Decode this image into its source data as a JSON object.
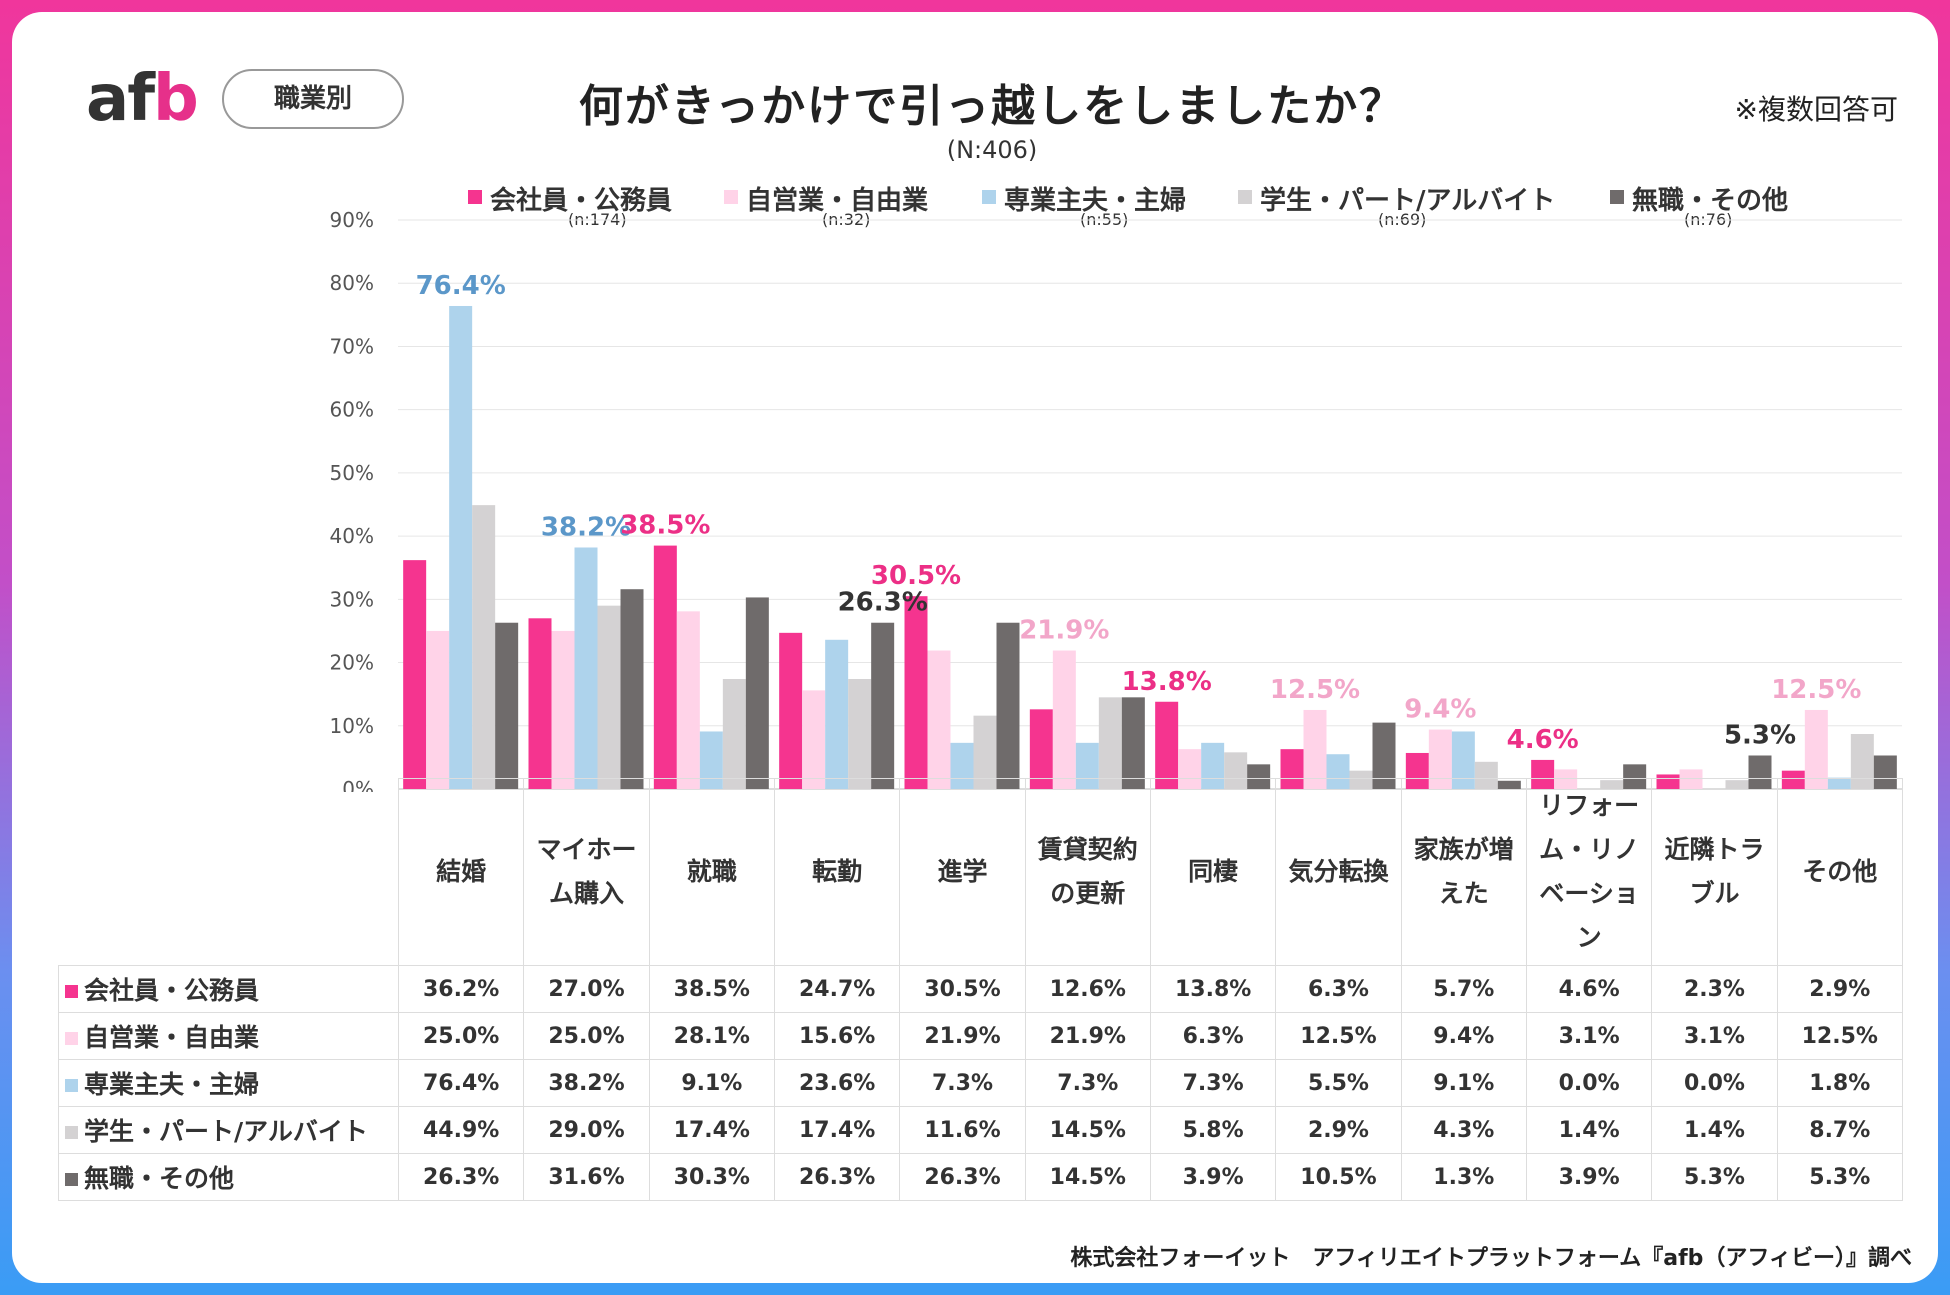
{
  "header": {
    "logo": {
      "a": "a",
      "f": "f",
      "b": "b"
    },
    "badge": "職業別",
    "title": "何がきっかけで引っ越しをしましたか？",
    "n_total": "(N:406)",
    "note": "※複数回答可"
  },
  "legend": [
    {
      "label": "会社員・公務員",
      "n": "(n:174)",
      "color": "#f5348f"
    },
    {
      "label": "自営業・自由業",
      "n": "(n:32)",
      "color": "#ffd3e8"
    },
    {
      "label": "専業主夫・主婦",
      "n": "(n:55)",
      "color": "#aed3ec"
    },
    {
      "label": "学生・パート/アルバイト",
      "n": "(n:69)",
      "color": "#d4d2d3"
    },
    {
      "label": "無職・その他",
      "n": "(n:76)",
      "color": "#6f6b6b"
    }
  ],
  "chart_data": {
    "type": "bar",
    "title": "何がきっかけで引っ越しをしましたか？",
    "ylim": [
      0,
      90
    ],
    "yticks": [
      "0%",
      "10%",
      "20%",
      "30%",
      "40%",
      "50%",
      "60%",
      "70%",
      "80%",
      "90%"
    ],
    "categories": [
      "結婚",
      "マイホーム購入",
      "就職",
      "転勤",
      "進学",
      "賃貸契約の更新",
      "同棲",
      "気分転換",
      "家族が増えた",
      "リフォーム・リノベーション",
      "近隣トラブル",
      "その他"
    ],
    "category_lines": [
      [
        "結婚"
      ],
      [
        "マイホー",
        "ム購入"
      ],
      [
        "就職"
      ],
      [
        "転勤"
      ],
      [
        "進学"
      ],
      [
        "賃貸契約",
        "の更新"
      ],
      [
        "同棲"
      ],
      [
        "気分転換"
      ],
      [
        "家族が増",
        "えた"
      ],
      [
        "リフォー",
        "ム・リノ",
        "ベーショ",
        "ン"
      ],
      [
        "近隣トラ",
        "ブル"
      ],
      [
        "その他"
      ]
    ],
    "series": [
      {
        "name": "会社員・公務員",
        "values": [
          36.2,
          27.0,
          38.5,
          24.7,
          30.5,
          12.6,
          13.8,
          6.3,
          5.7,
          4.6,
          2.3,
          2.9
        ]
      },
      {
        "name": "自営業・自由業",
        "values": [
          25.0,
          25.0,
          28.1,
          15.6,
          21.9,
          21.9,
          6.3,
          12.5,
          9.4,
          3.1,
          3.1,
          12.5
        ]
      },
      {
        "name": "専業主夫・主婦",
        "values": [
          76.4,
          38.2,
          9.1,
          23.6,
          7.3,
          7.3,
          7.3,
          5.5,
          9.1,
          0.0,
          0.0,
          1.8
        ]
      },
      {
        "name": "学生・パート/アルバイト",
        "values": [
          44.9,
          29.0,
          17.4,
          17.4,
          11.6,
          14.5,
          5.8,
          2.9,
          4.3,
          1.4,
          1.4,
          8.7
        ]
      },
      {
        "name": "無職・その他",
        "values": [
          26.3,
          31.6,
          30.3,
          26.3,
          26.3,
          14.5,
          3.9,
          10.5,
          1.3,
          3.9,
          5.3,
          5.3
        ]
      }
    ],
    "table_values": [
      [
        "36.2%",
        "27.0%",
        "38.5%",
        "24.7%",
        "30.5%",
        "12.6%",
        "13.8%",
        "6.3%",
        "5.7%",
        "4.6%",
        "2.3%",
        "2.9%"
      ],
      [
        "25.0%",
        "25.0%",
        "28.1%",
        "15.6%",
        "21.9%",
        "21.9%",
        "6.3%",
        "12.5%",
        "9.4%",
        "3.1%",
        "3.1%",
        "12.5%"
      ],
      [
        "76.4%",
        "38.2%",
        "9.1%",
        "23.6%",
        "7.3%",
        "7.3%",
        "7.3%",
        "5.5%",
        "9.1%",
        "0.0%",
        "0.0%",
        "1.8%"
      ],
      [
        "44.9%",
        "29.0%",
        "17.4%",
        "17.4%",
        "11.6%",
        "14.5%",
        "5.8%",
        "2.9%",
        "4.3%",
        "1.4%",
        "1.4%",
        "8.7%"
      ],
      [
        "26.3%",
        "31.6%",
        "30.3%",
        "26.3%",
        "26.3%",
        "14.5%",
        "3.9%",
        "10.5%",
        "1.3%",
        "3.9%",
        "5.3%",
        "5.3%"
      ]
    ],
    "highlight_labels": [
      {
        "cat": 0,
        "series": 2,
        "text": "76.4%",
        "color": "#5b97c9"
      },
      {
        "cat": 1,
        "series": 2,
        "text": "38.2%",
        "color": "#5b97c9"
      },
      {
        "cat": 2,
        "series": 0,
        "text": "38.5%",
        "color": "#ec2f86"
      },
      {
        "cat": 3,
        "series": 4,
        "text": "26.3%",
        "color": "#333333"
      },
      {
        "cat": 4,
        "series": 0,
        "text": "30.5%",
        "color": "#ec2f86"
      },
      {
        "cat": 5,
        "series": 1,
        "text": "21.9%",
        "color": "#f2a6c9"
      },
      {
        "cat": 6,
        "series": 0,
        "text": "13.8%",
        "color": "#ec2f86"
      },
      {
        "cat": 7,
        "series": 1,
        "text": "12.5%",
        "color": "#f2a6c9"
      },
      {
        "cat": 8,
        "series": 1,
        "text": "9.4%",
        "color": "#f2a6c9"
      },
      {
        "cat": 9,
        "series": 0,
        "text": "4.6%",
        "color": "#ec2f86"
      },
      {
        "cat": 10,
        "series": 4,
        "text": "5.3%",
        "color": "#333333"
      },
      {
        "cat": 11,
        "series": 1,
        "text": "12.5%",
        "color": "#f2a6c9"
      }
    ]
  },
  "source": "株式会社フォーイット　アフィリエイトプラットフォーム『afb（アフィビー）』調べ"
}
